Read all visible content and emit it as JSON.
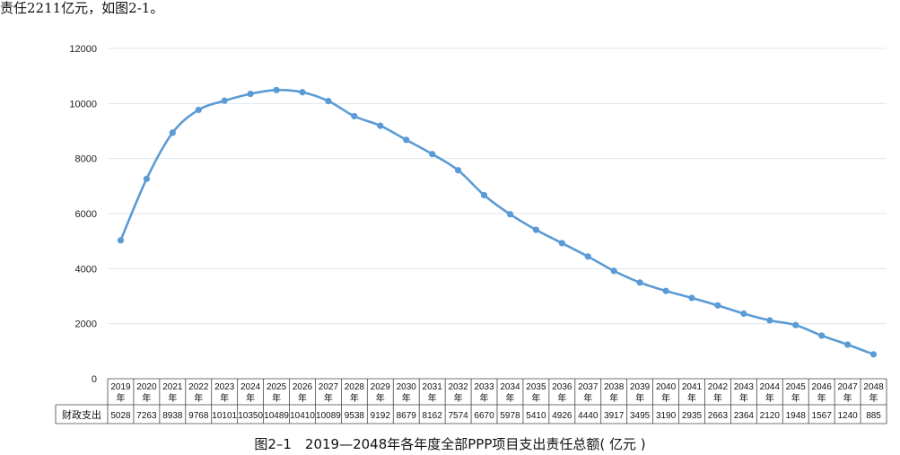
{
  "intro_text": "责任2211亿元，如图2-1。",
  "caption": "图2–1　2019—2048年各年度全部PPP项目支出责任总额( 亿元 )",
  "chart_data": {
    "type": "line",
    "title": "",
    "xlabel": "",
    "ylabel": "",
    "ylim": [
      0,
      12000
    ],
    "yticks": [
      0,
      2000,
      4000,
      6000,
      8000,
      10000,
      12000
    ],
    "grid": true,
    "line_color": "#5b9bd5",
    "categories": [
      "2019",
      "2020",
      "2021",
      "2022",
      "2023",
      "2024",
      "2025",
      "2026",
      "2027",
      "2028",
      "2029",
      "2030",
      "2031",
      "2032",
      "2033",
      "2034",
      "2035",
      "2036",
      "2037",
      "2038",
      "2039",
      "2040",
      "2041",
      "2042",
      "2043",
      "2044",
      "2045",
      "2046",
      "2047",
      "2048"
    ],
    "category_suffix": "年",
    "series": [
      {
        "name": "财政支出",
        "values": [
          5028,
          7263,
          8938,
          9768,
          10101,
          10350,
          10489,
          10410,
          10089,
          9538,
          9192,
          8679,
          8162,
          7574,
          6670,
          5978,
          5410,
          4926,
          4440,
          3917,
          3495,
          3190,
          2935,
          2663,
          2364,
          2120,
          1948,
          1567,
          1240,
          885
        ],
        "display_values": [
          "5028",
          "7263",
          "8938",
          "9768",
          "10101",
          "10350",
          "10489",
          "10410",
          "10089",
          "9538",
          "9192",
          "8679",
          "8162",
          "7574",
          "6670",
          "5978",
          "5410",
          "4926",
          "4440",
          "3917",
          "3495",
          "3190",
          "2935",
          "2663",
          "2364",
          "2120",
          "1948",
          "1567",
          "1240",
          "885"
        ]
      }
    ]
  }
}
